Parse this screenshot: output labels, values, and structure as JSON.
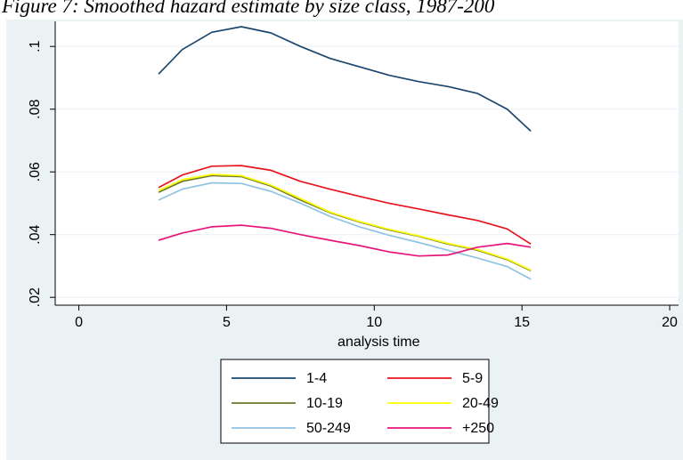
{
  "caption": "Figure 7: Smoothed hazard estimate by size class, 1987-200",
  "chart_data": {
    "type": "line",
    "title": "Figure 7: Smoothed hazard estimate by size class, 1987-200",
    "xlabel": "analysis time",
    "ylabel": "",
    "xlim": [
      -0.8,
      20.3
    ],
    "ylim": [
      0.0175,
      0.108
    ],
    "xticks": [
      0,
      5,
      10,
      15,
      20
    ],
    "xtick_labels": [
      "0",
      "5",
      "10",
      "15",
      "20"
    ],
    "yticks": [
      0.02,
      0.04,
      0.06,
      0.08,
      0.1
    ],
    "ytick_labels": [
      ".02",
      ".04",
      ".06",
      ".08",
      ".1"
    ],
    "grid": "horizontal",
    "legend_position": "bottom",
    "background_color": "#eaf2f3",
    "plot_background": "#ffffff",
    "x": [
      2.7,
      3.5,
      4.5,
      5.5,
      6.5,
      7.5,
      8.5,
      9.5,
      10.5,
      11.5,
      12.5,
      13.5,
      14.5,
      15.3
    ],
    "series": [
      {
        "name": "1-4",
        "color": "#1a476f",
        "values": [
          0.0912,
          0.099,
          0.1045,
          0.1063,
          0.1043,
          0.1,
          0.0962,
          0.0935,
          0.0908,
          0.0888,
          0.0872,
          0.085,
          0.08,
          0.073
        ]
      },
      {
        "name": "5-9",
        "color": "#e8141e",
        "values": [
          0.055,
          0.059,
          0.0618,
          0.062,
          0.0605,
          0.057,
          0.0545,
          0.0522,
          0.05,
          0.0482,
          0.0463,
          0.0445,
          0.0418,
          0.037
        ]
      },
      {
        "name": "10-19",
        "color": "#6b7a2a",
        "values": [
          0.0535,
          0.057,
          0.0588,
          0.0585,
          0.0555,
          0.051,
          0.047,
          0.044,
          0.0415,
          0.0395,
          0.037,
          0.035,
          0.032,
          0.0285
        ]
      },
      {
        "name": "20-49",
        "color": "#ffff00",
        "values": [
          0.054,
          0.0575,
          0.0592,
          0.0588,
          0.0558,
          0.0515,
          0.0472,
          0.0442,
          0.0417,
          0.0396,
          0.0372,
          0.0352,
          0.0322,
          0.0287
        ]
      },
      {
        "name": "50-249",
        "color": "#90c3e2",
        "values": [
          0.051,
          0.0545,
          0.0565,
          0.0563,
          0.0538,
          0.05,
          0.0458,
          0.0425,
          0.0398,
          0.0375,
          0.035,
          0.0325,
          0.0298,
          0.0258
        ]
      },
      {
        "name": "+250",
        "color": "#e8157a",
        "values": [
          0.0382,
          0.0405,
          0.0425,
          0.043,
          0.042,
          0.04,
          0.0382,
          0.0365,
          0.0345,
          0.0332,
          0.0335,
          0.036,
          0.0372,
          0.036
        ]
      }
    ]
  }
}
